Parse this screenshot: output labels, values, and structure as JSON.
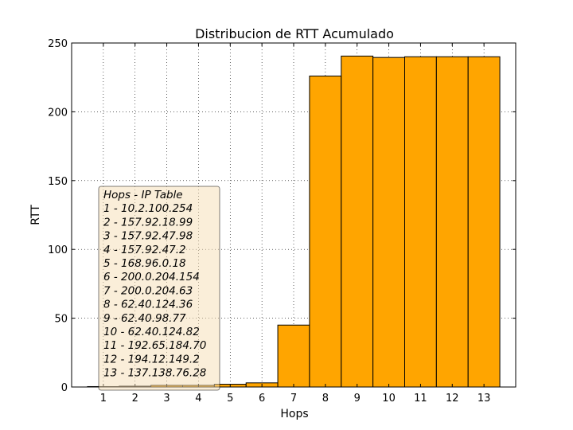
{
  "chart_data": {
    "type": "bar",
    "title": "Distribucion de RTT Acumulado",
    "xlabel": "Hops",
    "ylabel": "RTT",
    "categories": [
      "1",
      "2",
      "3",
      "4",
      "5",
      "6",
      "7",
      "8",
      "9",
      "10",
      "11",
      "12",
      "13"
    ],
    "values": [
      0.3,
      0.6,
      1.2,
      1.2,
      2.0,
      3.0,
      45,
      226,
      240.5,
      239.5,
      240,
      240,
      240
    ],
    "xlim": [
      0,
      14
    ],
    "ylim": [
      0,
      250
    ],
    "yticks": [
      0,
      50,
      100,
      150,
      200,
      250
    ],
    "grid": true,
    "bar_color": "#ffa500",
    "legend": {
      "placement": "lower-left",
      "title": "Hops - IP Table",
      "entries": [
        "1 - 10.2.100.254",
        "2 - 157.92.18.99",
        "3 - 157.92.47.98",
        "4 - 157.92.47.2",
        "5 - 168.96.0.18",
        "6 - 200.0.204.154",
        "7 - 200.0.204.63",
        "8 - 62.40.124.36",
        "9 - 62.40.98.77",
        "10 - 62.40.124.82",
        "11 - 192.65.184.70",
        "12 - 194.12.149.2",
        "13 - 137.138.76.28"
      ]
    }
  }
}
